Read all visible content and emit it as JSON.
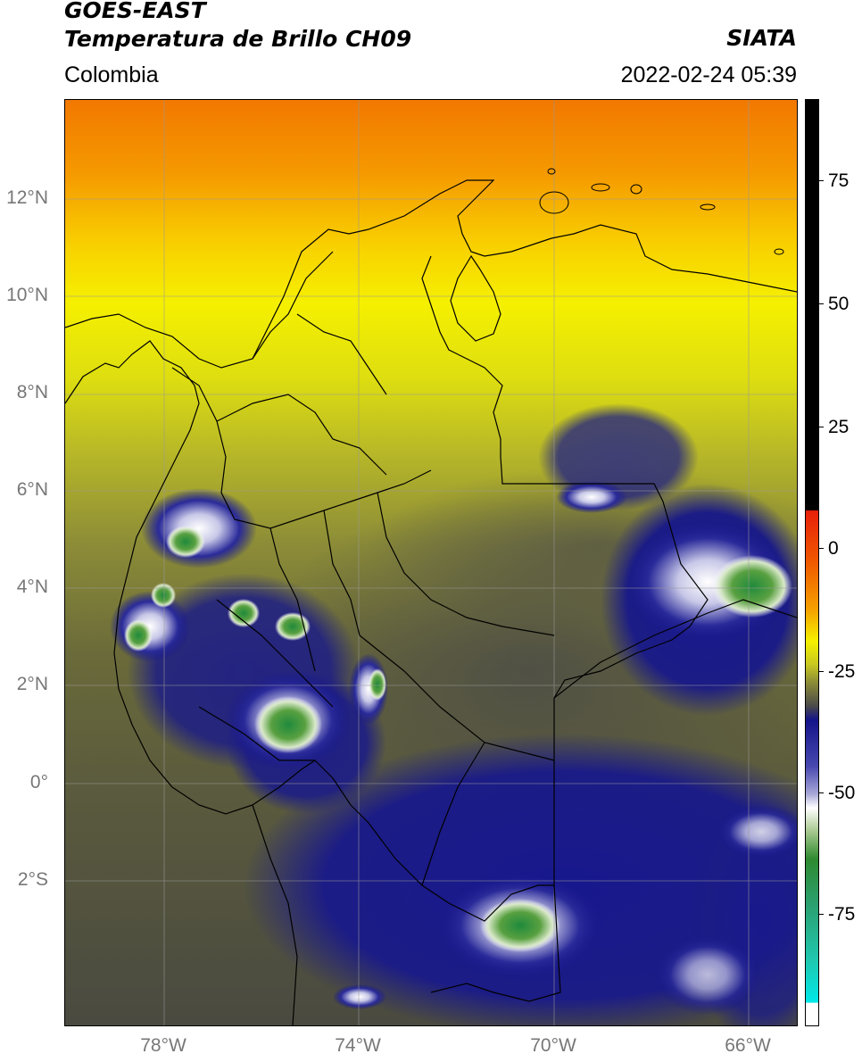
{
  "header": {
    "satellite": "GOES-EAST",
    "product": "Temperatura de Brillo CH09",
    "agency": "SIATA",
    "region": "Colombia",
    "datetime": "2022-02-24 05:39"
  },
  "map": {
    "latitude_labels": [
      "12°N",
      "10°N",
      "8°N",
      "6°N",
      "4°N",
      "2°N",
      "0°",
      "2°S"
    ],
    "longitude_labels": [
      "78°W",
      "74°W",
      "70°W",
      "66°W"
    ],
    "gridlines": true
  },
  "colorbar": {
    "tick_labels": [
      "75",
      "50",
      "25",
      "0",
      "-25",
      "-50",
      "-75"
    ],
    "colors": {
      "warm_top": "#000000",
      "red": "#e8200a",
      "orange": "#f07f00",
      "yellow": "#f5f500",
      "olive": "#9a9a30",
      "gray": "#4a4a4a",
      "navy": "#14148a",
      "white": "#ffffff",
      "green": "#2f8a30",
      "teal": "#20c8b0",
      "cyan": "#00e8e8"
    }
  }
}
